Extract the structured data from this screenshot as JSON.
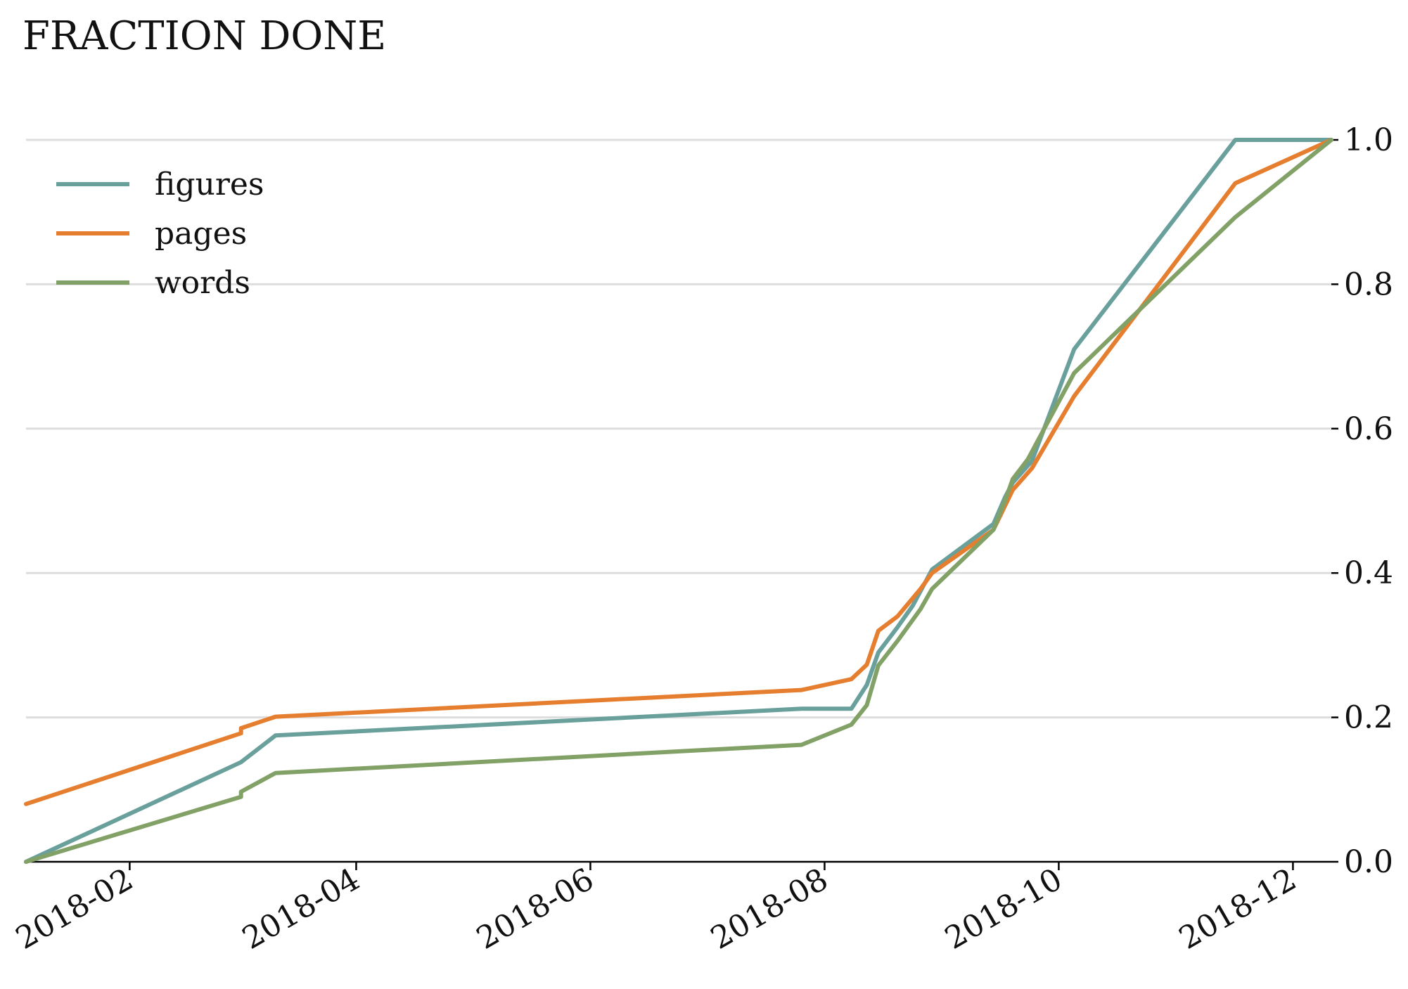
{
  "chart_data": {
    "type": "line",
    "title": "FRACTION DONE",
    "xlabel": "",
    "ylabel": "",
    "x_axis_type": "date",
    "xlim": [
      "2018-01-05",
      "2018-12-11"
    ],
    "ylim": [
      0.0,
      1.0
    ],
    "y_axis_position": "right",
    "grid": "horizontal",
    "legend_position": "top-left",
    "x_ticks": [
      "2018-02",
      "2018-04",
      "2018-06",
      "2018-08",
      "2018-10",
      "2018-12"
    ],
    "y_ticks": [
      "0.0",
      "0.2",
      "0.4",
      "0.6",
      "0.8",
      "1.0"
    ],
    "series": [
      {
        "name": "figures",
        "color": "#6aa09c",
        "points": [
          [
            "2018-01-05",
            0.0
          ],
          [
            "2018-03-02",
            0.138
          ],
          [
            "2018-03-11",
            0.175
          ],
          [
            "2018-07-26",
            0.212
          ],
          [
            "2018-08-08",
            0.212
          ],
          [
            "2018-08-12",
            0.245
          ],
          [
            "2018-08-15",
            0.29
          ],
          [
            "2018-08-20",
            0.325
          ],
          [
            "2018-08-24",
            0.355
          ],
          [
            "2018-08-27",
            0.385
          ],
          [
            "2018-08-29",
            0.405
          ],
          [
            "2018-09-14",
            0.468
          ],
          [
            "2018-09-17",
            0.505
          ],
          [
            "2018-09-19",
            0.525
          ],
          [
            "2018-09-24",
            0.555
          ],
          [
            "2018-10-05",
            0.71
          ],
          [
            "2018-11-16",
            1.0
          ],
          [
            "2018-12-11",
            1.0
          ]
        ]
      },
      {
        "name": "pages",
        "color": "#e67e30",
        "points": [
          [
            "2018-01-05",
            0.08
          ],
          [
            "2018-03-02",
            0.178
          ],
          [
            "2018-03-02",
            0.185
          ],
          [
            "2018-03-11",
            0.201
          ],
          [
            "2018-07-26",
            0.238
          ],
          [
            "2018-08-08",
            0.253
          ],
          [
            "2018-08-12",
            0.273
          ],
          [
            "2018-08-15",
            0.32
          ],
          [
            "2018-08-20",
            0.34
          ],
          [
            "2018-08-26",
            0.378
          ],
          [
            "2018-08-29",
            0.4
          ],
          [
            "2018-09-14",
            0.46
          ],
          [
            "2018-09-19",
            0.515
          ],
          [
            "2018-09-24",
            0.545
          ],
          [
            "2018-10-05",
            0.645
          ],
          [
            "2018-11-16",
            0.94
          ],
          [
            "2018-12-11",
            1.0
          ]
        ]
      },
      {
        "name": "words",
        "color": "#82a167",
        "points": [
          [
            "2018-01-05",
            0.0
          ],
          [
            "2018-03-02",
            0.09
          ],
          [
            "2018-03-02",
            0.097
          ],
          [
            "2018-03-11",
            0.123
          ],
          [
            "2018-07-26",
            0.162
          ],
          [
            "2018-08-08",
            0.19
          ],
          [
            "2018-08-12",
            0.217
          ],
          [
            "2018-08-15",
            0.272
          ],
          [
            "2018-08-20",
            0.306
          ],
          [
            "2018-08-26",
            0.35
          ],
          [
            "2018-08-29",
            0.378
          ],
          [
            "2018-09-14",
            0.46
          ],
          [
            "2018-09-17",
            0.5
          ],
          [
            "2018-09-19",
            0.53
          ],
          [
            "2018-09-23",
            0.558
          ],
          [
            "2018-09-25",
            0.578
          ],
          [
            "2018-10-05",
            0.677
          ],
          [
            "2018-11-16",
            0.893
          ],
          [
            "2018-12-11",
            1.0
          ]
        ]
      }
    ]
  }
}
